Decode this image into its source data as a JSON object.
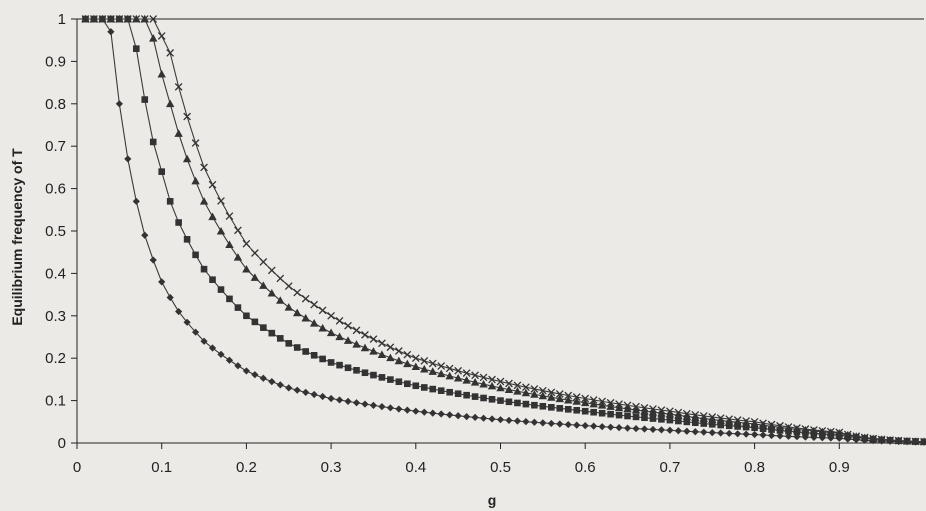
{
  "chart_data": {
    "type": "scatter",
    "title": "",
    "xlabel": "g",
    "ylabel": "Equilibrium frequency of T",
    "xlim": [
      0,
      1
    ],
    "ylim": [
      0,
      1
    ],
    "x_ticks": [
      "0",
      "0.1",
      "0.2",
      "0.3",
      "0.4",
      "0.5",
      "0.6",
      "0.7",
      "0.8",
      "0.9"
    ],
    "y_ticks": [
      "0",
      "0.1",
      "0.2",
      "0.3",
      "0.4",
      "0.5",
      "0.6",
      "0.7",
      "0.8",
      "0.9",
      "1"
    ],
    "grid": false,
    "legend": "none",
    "line_color": "#3a3a3a",
    "marker_color": "#333333",
    "sampling": {
      "x_start": 0.01,
      "x_end": 1.0,
      "x_step": 0.01
    },
    "series": [
      {
        "marker": "diamond-icon",
        "values": [
          [
            0.035,
            1.0
          ],
          [
            0.04,
            0.97
          ],
          [
            0.05,
            0.8
          ],
          [
            0.06,
            0.67
          ],
          [
            0.07,
            0.57
          ],
          [
            0.08,
            0.49
          ],
          [
            0.1,
            0.38
          ],
          [
            0.12,
            0.31
          ],
          [
            0.15,
            0.24
          ],
          [
            0.2,
            0.17
          ],
          [
            0.25,
            0.13
          ],
          [
            0.3,
            0.105
          ],
          [
            0.4,
            0.075
          ],
          [
            0.5,
            0.055
          ],
          [
            0.6,
            0.041
          ],
          [
            0.7,
            0.03
          ],
          [
            0.8,
            0.02
          ],
          [
            0.9,
            0.011
          ],
          [
            1.0,
            0.002
          ]
        ]
      },
      {
        "marker": "square-icon",
        "values": [
          [
            0.065,
            1.0
          ],
          [
            0.07,
            0.93
          ],
          [
            0.08,
            0.81
          ],
          [
            0.09,
            0.71
          ],
          [
            0.1,
            0.64
          ],
          [
            0.11,
            0.57
          ],
          [
            0.12,
            0.52
          ],
          [
            0.15,
            0.41
          ],
          [
            0.2,
            0.3
          ],
          [
            0.25,
            0.235
          ],
          [
            0.3,
            0.19
          ],
          [
            0.4,
            0.135
          ],
          [
            0.5,
            0.1
          ],
          [
            0.6,
            0.075
          ],
          [
            0.7,
            0.054
          ],
          [
            0.8,
            0.036
          ],
          [
            0.9,
            0.019
          ],
          [
            1.0,
            0.003
          ]
        ]
      },
      {
        "marker": "triangle-icon",
        "values": [
          [
            0.085,
            1.0
          ],
          [
            0.1,
            0.87
          ],
          [
            0.11,
            0.8
          ],
          [
            0.12,
            0.73
          ],
          [
            0.13,
            0.67
          ],
          [
            0.15,
            0.57
          ],
          [
            0.2,
            0.41
          ],
          [
            0.25,
            0.32
          ],
          [
            0.3,
            0.26
          ],
          [
            0.4,
            0.18
          ],
          [
            0.5,
            0.13
          ],
          [
            0.6,
            0.095
          ],
          [
            0.7,
            0.068
          ],
          [
            0.8,
            0.045
          ],
          [
            0.9,
            0.023
          ],
          [
            1.0,
            0.003
          ]
        ]
      },
      {
        "marker": "cross-icon",
        "values": [
          [
            0.095,
            1.0
          ],
          [
            0.1,
            0.96
          ],
          [
            0.11,
            0.92
          ],
          [
            0.12,
            0.84
          ],
          [
            0.13,
            0.77
          ],
          [
            0.15,
            0.65
          ],
          [
            0.2,
            0.47
          ],
          [
            0.25,
            0.37
          ],
          [
            0.3,
            0.3
          ],
          [
            0.4,
            0.2
          ],
          [
            0.5,
            0.145
          ],
          [
            0.6,
            0.105
          ],
          [
            0.7,
            0.075
          ],
          [
            0.8,
            0.05
          ],
          [
            0.9,
            0.025
          ],
          [
            1.0,
            0.003
          ]
        ]
      }
    ]
  }
}
